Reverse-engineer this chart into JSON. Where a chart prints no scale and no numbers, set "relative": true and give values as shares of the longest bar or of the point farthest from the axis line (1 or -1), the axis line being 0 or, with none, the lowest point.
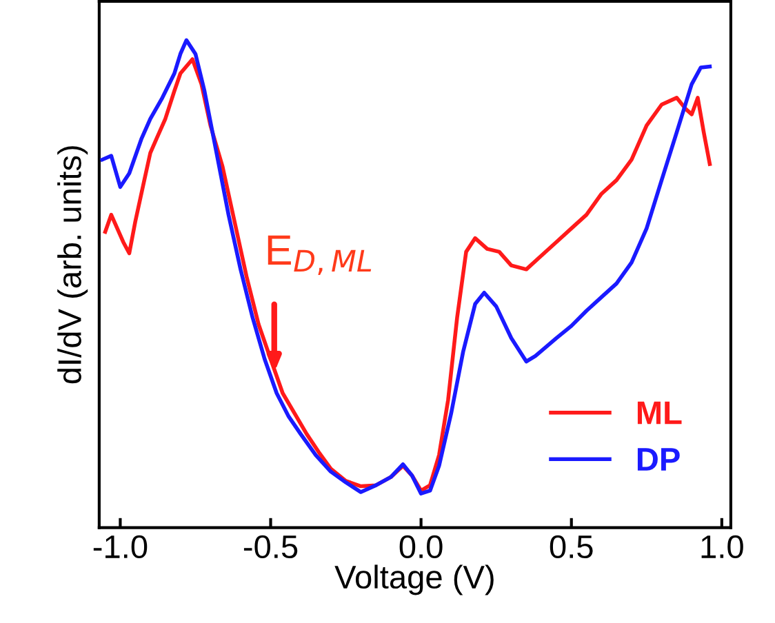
{
  "chart_data": {
    "type": "line",
    "relative": true,
    "xlabel": "Voltage (V)",
    "ylabel": "dI/dV (arb. units)",
    "xlim": [
      -1.07,
      1.03
    ],
    "xticks": [
      {
        "value": -1.0,
        "label": "-1.0"
      },
      {
        "value": -0.5,
        "label": "-0.5"
      },
      {
        "value": 0.0,
        "label": "0.0"
      },
      {
        "value": 0.5,
        "label": "0.5"
      },
      {
        "value": 1.0,
        "label": "1.0"
      }
    ],
    "grid": false,
    "legend": "bottom right",
    "line_style": "solid",
    "marker": "none",
    "annotations": [
      {
        "text": "E$_{D,ML}$",
        "x": -0.5,
        "y": 0.318
      }
    ],
    "series": [
      {
        "name": "ML",
        "color": "#ff1a1a",
        "x": [
          -1.05,
          -1.03,
          -0.99,
          -0.97,
          -0.95,
          -0.92,
          -0.9,
          -0.88,
          -0.85,
          -0.82,
          -0.8,
          -0.76,
          -0.73,
          -0.7,
          -0.66,
          -0.62,
          -0.58,
          -0.54,
          -0.5,
          -0.46,
          -0.42,
          -0.38,
          -0.34,
          -0.3,
          -0.25,
          -0.2,
          -0.15,
          -0.1,
          -0.06,
          -0.03,
          0.0,
          0.03,
          0.06,
          0.09,
          0.12,
          0.15,
          0.18,
          0.22,
          0.26,
          0.3,
          0.35,
          0.4,
          0.45,
          0.5,
          0.55,
          0.6,
          0.65,
          0.7,
          0.75,
          0.8,
          0.85,
          0.88,
          0.9,
          0.92,
          0.94,
          0.96
        ],
        "values": [
          0.607,
          0.642,
          0.586,
          0.563,
          0.628,
          0.713,
          0.769,
          0.797,
          0.839,
          0.896,
          0.932,
          0.961,
          0.91,
          0.825,
          0.741,
          0.628,
          0.515,
          0.417,
          0.346,
          0.276,
          0.234,
          0.192,
          0.155,
          0.121,
          0.096,
          0.085,
          0.087,
          0.104,
          0.127,
          0.107,
          0.076,
          0.087,
          0.149,
          0.262,
          0.431,
          0.566,
          0.594,
          0.572,
          0.566,
          0.538,
          0.53,
          0.558,
          0.586,
          0.614,
          0.642,
          0.685,
          0.713,
          0.755,
          0.825,
          0.868,
          0.882,
          0.859,
          0.848,
          0.882,
          0.811,
          0.746
        ]
      },
      {
        "name": "DP",
        "color": "#1a1aff",
        "x": [
          -1.06,
          -1.03,
          -1.0,
          -0.97,
          -0.93,
          -0.9,
          -0.86,
          -0.82,
          -0.8,
          -0.78,
          -0.75,
          -0.72,
          -0.68,
          -0.64,
          -0.6,
          -0.56,
          -0.52,
          -0.48,
          -0.44,
          -0.4,
          -0.35,
          -0.3,
          -0.25,
          -0.2,
          -0.15,
          -0.1,
          -0.06,
          -0.03,
          0.0,
          0.03,
          0.06,
          0.1,
          0.14,
          0.18,
          0.21,
          0.25,
          0.3,
          0.35,
          0.38,
          0.45,
          0.5,
          0.55,
          0.6,
          0.65,
          0.7,
          0.75,
          0.8,
          0.85,
          0.9,
          0.93,
          0.96
        ],
        "values": [
          0.755,
          0.763,
          0.699,
          0.727,
          0.797,
          0.839,
          0.882,
          0.932,
          0.972,
          1.0,
          0.972,
          0.896,
          0.769,
          0.642,
          0.53,
          0.431,
          0.346,
          0.276,
          0.228,
          0.192,
          0.149,
          0.115,
          0.093,
          0.073,
          0.087,
          0.104,
          0.13,
          0.107,
          0.07,
          0.076,
          0.127,
          0.234,
          0.361,
          0.459,
          0.482,
          0.454,
          0.389,
          0.341,
          0.352,
          0.389,
          0.414,
          0.445,
          0.473,
          0.501,
          0.544,
          0.614,
          0.713,
          0.811,
          0.91,
          0.944,
          0.946
        ]
      }
    ]
  }
}
